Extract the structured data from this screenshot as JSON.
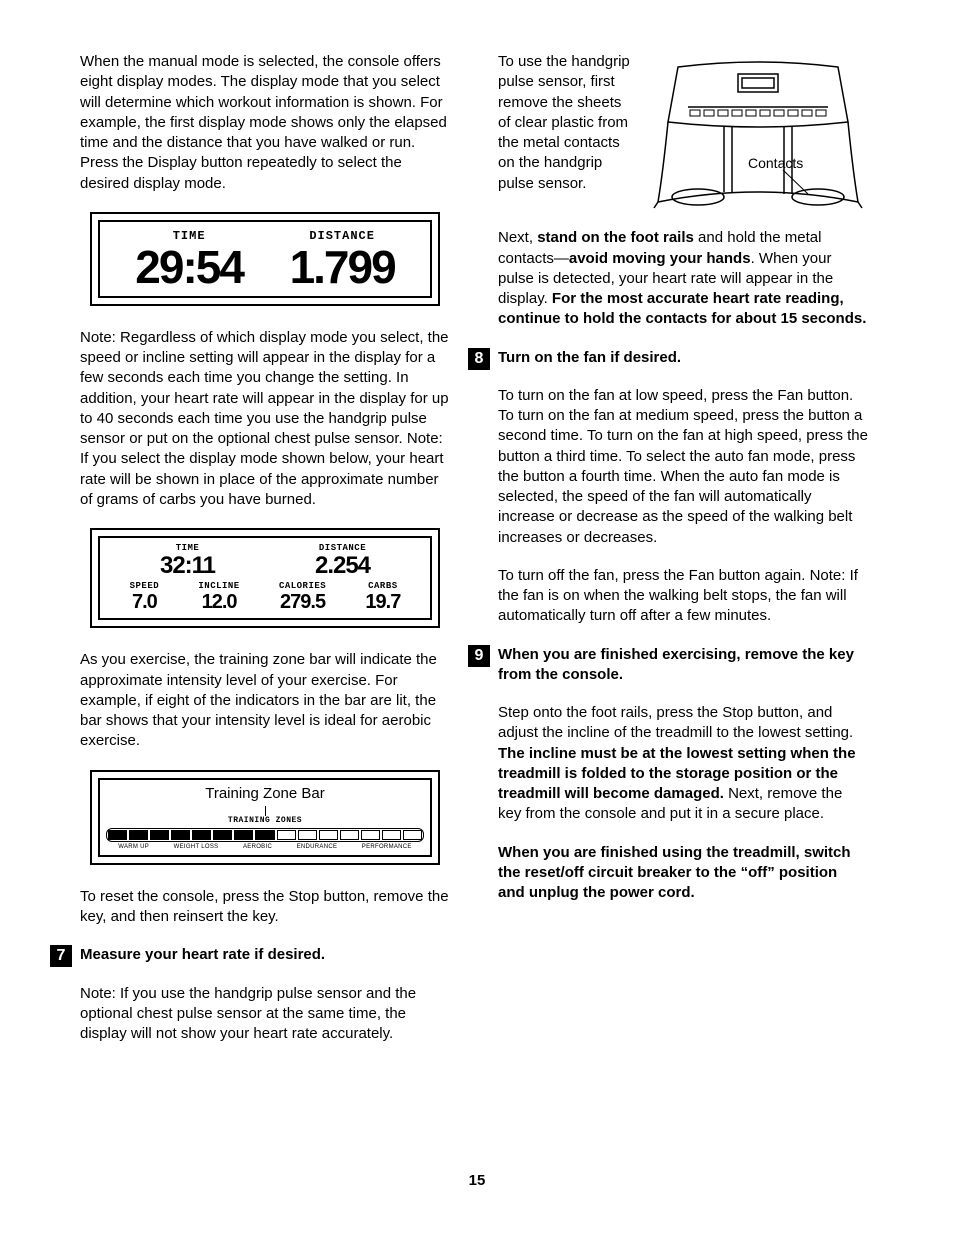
{
  "left": {
    "p1": "When the manual mode is selected, the console offers eight display modes. The display mode that you select will determine which workout information is shown. For example, the first display mode shows only the elapsed time and the distance that you have walked or run. Press the Display button repeatedly to select the desired display mode.",
    "lcd1": {
      "time_label": "TIME",
      "time_value": "29:54",
      "dist_label": "DISTANCE",
      "dist_value": "1.799"
    },
    "p2": "Note: Regardless of which display mode you select, the speed or incline setting will appear in the display for a few seconds each time you change the setting. In addition, your heart rate will appear in the display for up to 40 seconds each time you use the handgrip pulse sensor or put on the optional chest pulse sensor. Note: If you select the display mode shown below, your heart rate will be shown in place of the approximate number of grams of carbs you have burned.",
    "lcd2": {
      "top": [
        {
          "label": "TIME",
          "value": "32:11"
        },
        {
          "label": "DISTANCE",
          "value": "2.254"
        }
      ],
      "bot": [
        {
          "label": "SPEED",
          "value": "7.0"
        },
        {
          "label": "INCLINE",
          "value": "12.0"
        },
        {
          "label": "CALORIES",
          "value": "279.5"
        },
        {
          "label": "CARBS",
          "value": "19.7"
        }
      ]
    },
    "p3": "As you exercise, the training zone bar will indicate the approximate intensity level of your exercise. For example, if eight of the indicators in the bar are lit, the bar shows that your intensity level is ideal for aerobic exercise.",
    "tz": {
      "title": "Training Zone Bar",
      "sub": "TRAINING ZONES",
      "filled": 8,
      "total": 15,
      "zones": [
        "WARM UP",
        "WEIGHT LOSS",
        "AEROBIC",
        "ENDURANCE",
        "PERFORMANCE"
      ]
    },
    "p4": "To reset the console, press the Stop button, remove the key, and then reinsert the key.",
    "step7": {
      "num": "7",
      "title": "Measure your heart rate if desired.",
      "body": "Note: If you use the handgrip pulse sensor and the optional chest pulse sensor at the same time, the display will not show your heart rate accurately."
    }
  },
  "right": {
    "pulse_intro": "To use the handgrip pulse sensor, first remove the sheets of clear plastic from the metal contacts on the handgrip pulse sensor.",
    "console_label": "Contacts",
    "pulse_p2a": "Next, ",
    "pulse_p2b": "stand on the foot rails",
    "pulse_p2c": " and hold the metal contacts—",
    "pulse_p2d": "avoid moving your hands",
    "pulse_p2e": ". When your pulse is detected, your heart rate will appear in the display. ",
    "pulse_p2f": "For the most accurate heart rate reading, continue to hold the contacts for about 15 seconds.",
    "step8": {
      "num": "8",
      "title": "Turn on the fan if desired.",
      "body1": "To turn on the fan at low speed, press the Fan button. To turn on the fan at medium speed, press the button a second time. To turn on the fan at high speed, press the button a third time. To select the auto fan mode, press the button a fourth time. When the auto fan mode is selected, the speed of the fan will automatically increase or decrease as the speed of the walking belt increases or decreases.",
      "body2": "To turn off the fan, press the Fan button again. Note: If the fan is on when the walking belt stops, the fan will automatically turn off after a few minutes."
    },
    "step9": {
      "num": "9",
      "title": "When you are finished exercising, remove the key from the console.",
      "body1a": "Step onto the foot rails, press the Stop button, and adjust the incline of the treadmill to the lowest setting. ",
      "body1b": "The incline must be at the lowest setting when the treadmill is folded to the storage position or the treadmill will become damaged.",
      "body1c": " Next, remove the key from the console and put it in a secure place.",
      "body2": "When you are finished using the treadmill, switch the reset/off circuit breaker to the “off” position and unplug the power cord."
    }
  },
  "page_number": "15"
}
